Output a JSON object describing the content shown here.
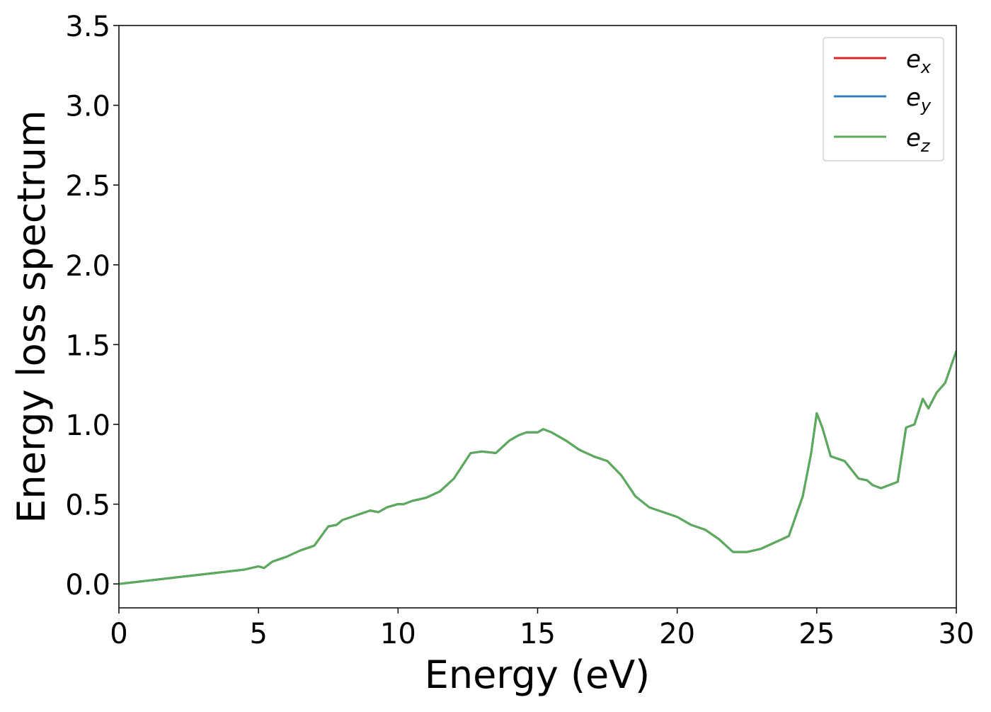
{
  "chart_data": {
    "type": "line",
    "title": "",
    "xlabel": "Energy (eV)",
    "ylabel": "Energy loss spectrum",
    "xlim": [
      0,
      30
    ],
    "ylim": [
      -0.15,
      3.5
    ],
    "xticks": [
      0,
      5,
      10,
      15,
      20,
      25,
      30
    ],
    "xtick_labels": [
      "0",
      "5",
      "10",
      "15",
      "20",
      "25",
      "30"
    ],
    "yticks": [
      0.0,
      0.5,
      1.0,
      1.5,
      2.0,
      2.5,
      3.0,
      3.5
    ],
    "ytick_labels": [
      "0.0",
      "0.5",
      "1.0",
      "1.5",
      "2.0",
      "2.5",
      "3.0",
      "3.5"
    ],
    "grid": false,
    "legend_position": "top-right",
    "x": [
      0,
      0.5,
      1,
      1.5,
      2,
      2.5,
      3,
      3.5,
      4,
      4.5,
      5,
      5.2,
      5.5,
      6,
      6.5,
      7,
      7.5,
      7.8,
      8,
      8.5,
      9,
      9.3,
      9.6,
      10,
      10.2,
      10.5,
      11,
      11.5,
      12,
      12.3,
      12.6,
      13,
      13.5,
      14,
      14.3,
      14.6,
      15,
      15.2,
      15.5,
      16,
      16.5,
      17,
      17.5,
      18,
      18.5,
      19,
      19.5,
      20,
      20.5,
      21,
      21.5,
      22,
      22.5,
      23,
      23.5,
      24,
      24.5,
      24.8,
      25,
      25.2,
      25.5,
      26,
      26.5,
      26.8,
      27,
      27.3,
      27.6,
      27.9,
      28.2,
      28.5,
      28.8,
      29,
      29.3,
      29.6,
      30
    ],
    "series": [
      {
        "name": "e_x",
        "legend_main": "e",
        "legend_sub": "x",
        "color": "#d62728",
        "y": [
          0.0,
          0.01,
          0.02,
          0.03,
          0.04,
          0.05,
          0.06,
          0.07,
          0.08,
          0.09,
          0.11,
          0.1,
          0.14,
          0.17,
          0.21,
          0.24,
          0.36,
          0.37,
          0.4,
          0.43,
          0.46,
          0.45,
          0.48,
          0.5,
          0.5,
          0.52,
          0.54,
          0.58,
          0.66,
          0.74,
          0.82,
          0.83,
          0.82,
          0.9,
          0.93,
          0.95,
          0.95,
          0.97,
          0.95,
          0.9,
          0.84,
          0.8,
          0.77,
          0.68,
          0.55,
          0.48,
          0.45,
          0.42,
          0.37,
          0.34,
          0.28,
          0.2,
          0.2,
          0.22,
          0.26,
          0.3,
          0.55,
          0.82,
          1.07,
          0.98,
          0.8,
          0.77,
          0.66,
          0.65,
          0.62,
          0.6,
          0.62,
          0.64,
          0.98,
          1.0,
          1.16,
          1.1,
          1.2,
          1.26,
          1.46
        ]
      },
      {
        "name": "e_y",
        "legend_main": "e",
        "legend_sub": "y",
        "color": "#377eb8",
        "y": [
          0.0,
          0.01,
          0.02,
          0.03,
          0.04,
          0.05,
          0.06,
          0.07,
          0.08,
          0.09,
          0.11,
          0.1,
          0.14,
          0.17,
          0.21,
          0.24,
          0.36,
          0.37,
          0.4,
          0.43,
          0.46,
          0.45,
          0.48,
          0.5,
          0.5,
          0.52,
          0.54,
          0.58,
          0.66,
          0.74,
          0.82,
          0.83,
          0.82,
          0.9,
          0.93,
          0.95,
          0.95,
          0.97,
          0.95,
          0.9,
          0.84,
          0.8,
          0.77,
          0.68,
          0.55,
          0.48,
          0.45,
          0.42,
          0.37,
          0.34,
          0.28,
          0.2,
          0.2,
          0.22,
          0.26,
          0.3,
          0.55,
          0.82,
          1.07,
          0.98,
          0.8,
          0.77,
          0.66,
          0.65,
          0.62,
          0.6,
          0.62,
          0.64,
          0.98,
          1.0,
          1.16,
          1.1,
          1.2,
          1.26,
          1.46
        ]
      },
      {
        "name": "e_z",
        "legend_main": "e",
        "legend_sub": "z",
        "color": "#5aab5a",
        "y": [
          0.0,
          0.01,
          0.02,
          0.03,
          0.04,
          0.05,
          0.06,
          0.07,
          0.08,
          0.09,
          0.11,
          0.1,
          0.14,
          0.17,
          0.21,
          0.24,
          0.36,
          0.37,
          0.4,
          0.43,
          0.46,
          0.45,
          0.48,
          0.5,
          0.5,
          0.52,
          0.54,
          0.58,
          0.66,
          0.74,
          0.82,
          0.83,
          0.82,
          0.9,
          0.93,
          0.95,
          0.95,
          0.97,
          0.95,
          0.9,
          0.84,
          0.8,
          0.77,
          0.68,
          0.55,
          0.48,
          0.45,
          0.42,
          0.37,
          0.34,
          0.28,
          0.2,
          0.2,
          0.22,
          0.26,
          0.3,
          0.55,
          0.82,
          1.07,
          0.98,
          0.8,
          0.77,
          0.66,
          0.65,
          0.62,
          0.6,
          0.62,
          0.64,
          0.98,
          1.0,
          1.16,
          1.1,
          1.2,
          1.26,
          1.46
        ]
      }
    ]
  }
}
